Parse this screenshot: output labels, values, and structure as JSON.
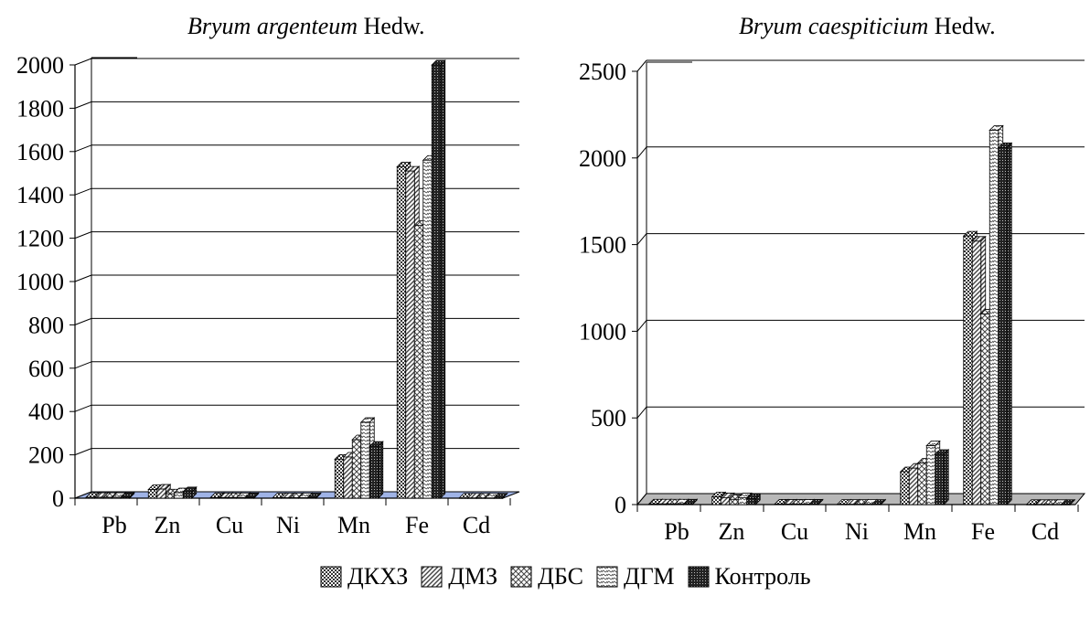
{
  "figure": {
    "titles": [
      {
        "italic": "Bryum argenteum",
        "rest": " Hedw."
      },
      {
        "italic": "Bryum caespiticium",
        "rest": " Hedw."
      }
    ]
  },
  "legend": {
    "items": [
      {
        "label": "ДКХЗ",
        "pattern": "checker"
      },
      {
        "label": "ДМЗ",
        "pattern": "diagonal"
      },
      {
        "label": "ДБС",
        "pattern": "crosshatch"
      },
      {
        "label": "ДГМ",
        "pattern": "wave"
      },
      {
        "label": "Контроль",
        "pattern": "dark"
      }
    ]
  },
  "chart_data": [
    {
      "type": "bar",
      "title": "Bryum argenteum Hedw.",
      "categories": [
        "Pb",
        "Zn",
        "Cu",
        "Ni",
        "Mn",
        "Fe",
        "Cd"
      ],
      "ylim": [
        0,
        2000
      ],
      "yticks": [
        "0",
        "200",
        "400",
        "600",
        "800",
        "1000",
        "1200",
        "1400",
        "1600",
        "1800",
        "2000"
      ],
      "grid": true,
      "floor_color": "#9fb3e6",
      "series": [
        {
          "name": "ДКХЗ",
          "values": [
            4,
            40,
            3,
            2,
            180,
            1530,
            1
          ]
        },
        {
          "name": "ДМЗ",
          "values": [
            4,
            42,
            3,
            2,
            190,
            1510,
            1
          ]
        },
        {
          "name": "ДБС",
          "values": [
            4,
            20,
            3,
            2,
            270,
            1260,
            1
          ]
        },
        {
          "name": "ДГМ",
          "values": [
            4,
            25,
            3,
            2,
            350,
            1560,
            1
          ]
        },
        {
          "name": "Контроль",
          "values": [
            4,
            30,
            3,
            2,
            240,
            2000,
            1
          ]
        }
      ]
    },
    {
      "type": "bar",
      "title": "Bryum caespiticium Hedw.",
      "categories": [
        "Pb",
        "Zn",
        "Cu",
        "Ni",
        "Mn",
        "Fe",
        "Cd"
      ],
      "ylim": [
        0,
        2500
      ],
      "yticks": [
        "0",
        "500",
        "1000",
        "1500",
        "2000",
        "2500"
      ],
      "grid": true,
      "floor_color": "#b8b8b8",
      "series": [
        {
          "name": "ДКХЗ",
          "values": [
            4,
            45,
            3,
            2,
            190,
            1550,
            1
          ]
        },
        {
          "name": "ДМЗ",
          "values": [
            4,
            40,
            3,
            2,
            210,
            1520,
            1
          ]
        },
        {
          "name": "ДБС",
          "values": [
            4,
            30,
            3,
            2,
            240,
            1100,
            1
          ]
        },
        {
          "name": "ДГМ",
          "values": [
            4,
            40,
            3,
            2,
            340,
            2160,
            1
          ]
        },
        {
          "name": "Контроль",
          "values": [
            4,
            35,
            3,
            2,
            290,
            2060,
            1
          ]
        }
      ]
    }
  ]
}
